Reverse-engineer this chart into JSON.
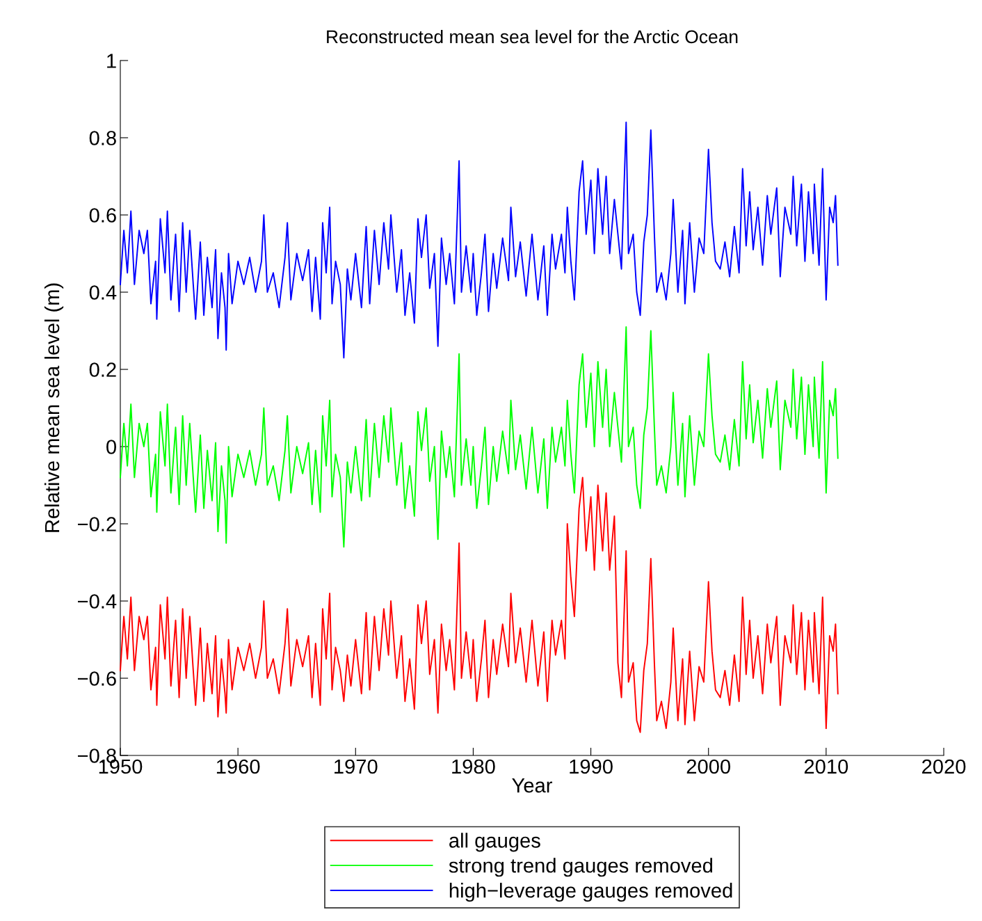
{
  "chart_data": {
    "type": "line",
    "title": "Reconstructed mean sea level for the Arctic Ocean",
    "xlabel": "Year",
    "ylabel": "Relative mean sea level (m)",
    "x": [
      1950.0,
      1950.3,
      1950.6,
      1950.9,
      1951.2,
      1951.6,
      1952.0,
      1952.3,
      1952.6,
      1953.0,
      1953.1,
      1953.4,
      1953.8,
      1954.0,
      1954.3,
      1954.7,
      1955.0,
      1955.3,
      1955.6,
      1955.9,
      1956.2,
      1956.4,
      1956.8,
      1957.1,
      1957.4,
      1957.8,
      1958.1,
      1958.3,
      1958.6,
      1958.9,
      1959.0,
      1959.2,
      1959.5,
      1960.0,
      1960.5,
      1961.0,
      1961.5,
      1962.0,
      1962.2,
      1962.5,
      1963.0,
      1963.5,
      1964.0,
      1964.2,
      1964.5,
      1965.0,
      1965.5,
      1966.0,
      1966.3,
      1966.6,
      1967.0,
      1967.2,
      1967.5,
      1967.8,
      1968.0,
      1968.3,
      1968.7,
      1969.0,
      1969.3,
      1969.6,
      1970.0,
      1970.5,
      1970.9,
      1971.2,
      1971.6,
      1972.0,
      1972.4,
      1972.8,
      1973.0,
      1973.5,
      1973.9,
      1974.2,
      1974.6,
      1975.0,
      1975.3,
      1975.6,
      1976.0,
      1976.3,
      1976.7,
      1977.0,
      1977.3,
      1977.7,
      1978.0,
      1978.4,
      1978.8,
      1979.0,
      1979.4,
      1979.8,
      1980.0,
      1980.3,
      1980.7,
      1981.0,
      1981.3,
      1981.7,
      1982.0,
      1982.5,
      1983.0,
      1983.2,
      1983.6,
      1984.0,
      1984.5,
      1985.0,
      1985.5,
      1986.0,
      1986.3,
      1986.7,
      1987.0,
      1987.5,
      1987.8,
      1988.0,
      1988.3,
      1988.6,
      1989.0,
      1989.3,
      1989.6,
      1990.0,
      1990.3,
      1990.6,
      1991.0,
      1991.3,
      1991.6,
      1992.0,
      1992.3,
      1992.6,
      1993.0,
      1993.2,
      1993.6,
      1993.9,
      1994.2,
      1994.5,
      1994.8,
      1995.1,
      1995.4,
      1995.6,
      1996.0,
      1996.4,
      1996.8,
      1997.0,
      1997.4,
      1997.8,
      1998.0,
      1998.4,
      1998.8,
      1999.2,
      1999.6,
      2000.0,
      2000.3,
      2000.6,
      2001.0,
      2001.4,
      2001.8,
      2002.2,
      2002.6,
      2002.9,
      2003.2,
      2003.5,
      2003.8,
      2004.2,
      2004.6,
      2005.0,
      2005.3,
      2005.8,
      2006.1,
      2006.5,
      2007.0,
      2007.2,
      2007.5,
      2007.9,
      2008.2,
      2008.5,
      2008.9,
      2009.0,
      2009.4,
      2009.7,
      2010.0,
      2010.3,
      2010.6,
      2010.8,
      2011.0
    ],
    "series": [
      {
        "name": "all gauges",
        "color": "#ff0000",
        "values": [
          -0.58,
          -0.44,
          -0.55,
          -0.39,
          -0.58,
          -0.44,
          -0.5,
          -0.44,
          -0.63,
          -0.52,
          -0.67,
          -0.41,
          -0.55,
          -0.39,
          -0.62,
          -0.45,
          -0.65,
          -0.42,
          -0.6,
          -0.44,
          -0.58,
          -0.67,
          -0.47,
          -0.66,
          -0.51,
          -0.64,
          -0.49,
          -0.7,
          -0.55,
          -0.64,
          -0.69,
          -0.5,
          -0.63,
          -0.52,
          -0.58,
          -0.51,
          -0.6,
          -0.52,
          -0.4,
          -0.6,
          -0.55,
          -0.64,
          -0.51,
          -0.42,
          -0.62,
          -0.5,
          -0.57,
          -0.49,
          -0.65,
          -0.51,
          -0.67,
          -0.42,
          -0.55,
          -0.38,
          -0.63,
          -0.52,
          -0.58,
          -0.66,
          -0.54,
          -0.62,
          -0.5,
          -0.64,
          -0.43,
          -0.63,
          -0.44,
          -0.58,
          -0.42,
          -0.54,
          -0.4,
          -0.6,
          -0.49,
          -0.66,
          -0.55,
          -0.68,
          -0.41,
          -0.51,
          -0.4,
          -0.59,
          -0.5,
          -0.69,
          -0.46,
          -0.58,
          -0.5,
          -0.63,
          -0.25,
          -0.6,
          -0.48,
          -0.6,
          -0.5,
          -0.66,
          -0.55,
          -0.45,
          -0.65,
          -0.5,
          -0.59,
          -0.46,
          -0.57,
          -0.38,
          -0.56,
          -0.47,
          -0.61,
          -0.45,
          -0.62,
          -0.48,
          -0.66,
          -0.45,
          -0.54,
          -0.45,
          -0.55,
          -0.2,
          -0.34,
          -0.44,
          -0.16,
          -0.08,
          -0.27,
          -0.13,
          -0.32,
          -0.1,
          -0.27,
          -0.12,
          -0.32,
          -0.18,
          -0.56,
          -0.65,
          -0.27,
          -0.61,
          -0.56,
          -0.71,
          -0.74,
          -0.58,
          -0.51,
          -0.29,
          -0.56,
          -0.71,
          -0.66,
          -0.73,
          -0.61,
          -0.47,
          -0.71,
          -0.55,
          -0.72,
          -0.53,
          -0.71,
          -0.57,
          -0.61,
          -0.35,
          -0.53,
          -0.63,
          -0.65,
          -0.58,
          -0.67,
          -0.54,
          -0.66,
          -0.39,
          -0.59,
          -0.45,
          -0.6,
          -0.49,
          -0.64,
          -0.46,
          -0.56,
          -0.44,
          -0.67,
          -0.49,
          -0.56,
          -0.41,
          -0.59,
          -0.43,
          -0.63,
          -0.45,
          -0.61,
          -0.43,
          -0.64,
          -0.39,
          -0.73,
          -0.49,
          -0.53,
          -0.46,
          -0.64
        ]
      },
      {
        "name": "strong trend gauges removed",
        "color": "#00ff00",
        "values": [
          -0.08,
          0.06,
          -0.05,
          0.11,
          -0.08,
          0.06,
          0.0,
          0.06,
          -0.13,
          -0.02,
          -0.17,
          0.09,
          -0.05,
          0.11,
          -0.12,
          0.05,
          -0.15,
          0.08,
          -0.1,
          0.06,
          -0.08,
          -0.17,
          0.03,
          -0.16,
          -0.01,
          -0.14,
          0.01,
          -0.22,
          -0.05,
          -0.14,
          -0.25,
          0.0,
          -0.13,
          -0.02,
          -0.08,
          -0.01,
          -0.1,
          -0.02,
          0.1,
          -0.1,
          -0.05,
          -0.14,
          -0.01,
          0.08,
          -0.12,
          0.0,
          -0.07,
          0.01,
          -0.15,
          -0.01,
          -0.17,
          0.08,
          -0.05,
          0.12,
          -0.13,
          -0.02,
          -0.08,
          -0.26,
          -0.04,
          -0.12,
          0.0,
          -0.14,
          0.07,
          -0.13,
          0.06,
          -0.08,
          0.08,
          -0.04,
          0.1,
          -0.1,
          0.01,
          -0.16,
          -0.05,
          -0.18,
          0.09,
          -0.01,
          0.1,
          -0.09,
          0.0,
          -0.24,
          0.04,
          -0.08,
          0.0,
          -0.13,
          0.24,
          -0.1,
          0.02,
          -0.1,
          0.0,
          -0.16,
          -0.05,
          0.05,
          -0.15,
          0.0,
          -0.09,
          0.04,
          -0.07,
          0.12,
          -0.06,
          0.03,
          -0.11,
          0.05,
          -0.12,
          0.02,
          -0.16,
          0.05,
          -0.04,
          0.05,
          -0.05,
          0.12,
          -0.02,
          -0.12,
          0.16,
          0.24,
          0.05,
          0.19,
          0.0,
          0.22,
          0.05,
          0.2,
          0.0,
          0.14,
          0.05,
          -0.04,
          0.31,
          0.0,
          0.05,
          -0.1,
          -0.16,
          0.03,
          0.1,
          0.3,
          0.05,
          -0.1,
          -0.05,
          -0.12,
          0.0,
          0.14,
          -0.1,
          0.06,
          -0.13,
          0.08,
          -0.1,
          0.04,
          0.0,
          0.24,
          0.08,
          -0.02,
          -0.04,
          0.03,
          -0.06,
          0.07,
          -0.05,
          0.22,
          0.02,
          0.16,
          0.01,
          0.12,
          -0.03,
          0.15,
          0.05,
          0.17,
          -0.06,
          0.12,
          0.05,
          0.2,
          0.02,
          0.18,
          -0.02,
          0.16,
          0.0,
          0.18,
          -0.03,
          0.22,
          -0.12,
          0.12,
          0.08,
          0.15,
          -0.03
        ]
      },
      {
        "name": "high−leverage gauges removed",
        "color": "#0000ff",
        "values": [
          0.42,
          0.56,
          0.45,
          0.61,
          0.42,
          0.56,
          0.5,
          0.56,
          0.37,
          0.48,
          0.33,
          0.59,
          0.45,
          0.61,
          0.38,
          0.55,
          0.35,
          0.58,
          0.4,
          0.56,
          0.42,
          0.33,
          0.53,
          0.34,
          0.49,
          0.36,
          0.51,
          0.28,
          0.45,
          0.36,
          0.25,
          0.5,
          0.37,
          0.48,
          0.42,
          0.49,
          0.4,
          0.48,
          0.6,
          0.4,
          0.45,
          0.36,
          0.49,
          0.58,
          0.38,
          0.5,
          0.43,
          0.51,
          0.35,
          0.49,
          0.33,
          0.58,
          0.45,
          0.62,
          0.37,
          0.48,
          0.42,
          0.23,
          0.46,
          0.38,
          0.5,
          0.36,
          0.57,
          0.37,
          0.56,
          0.42,
          0.58,
          0.46,
          0.6,
          0.4,
          0.51,
          0.34,
          0.45,
          0.32,
          0.59,
          0.49,
          0.6,
          0.41,
          0.5,
          0.26,
          0.54,
          0.42,
          0.5,
          0.37,
          0.74,
          0.4,
          0.52,
          0.4,
          0.5,
          0.34,
          0.45,
          0.55,
          0.35,
          0.5,
          0.41,
          0.54,
          0.43,
          0.62,
          0.44,
          0.53,
          0.39,
          0.55,
          0.38,
          0.52,
          0.34,
          0.55,
          0.46,
          0.55,
          0.45,
          0.62,
          0.48,
          0.38,
          0.66,
          0.74,
          0.55,
          0.69,
          0.5,
          0.72,
          0.55,
          0.7,
          0.5,
          0.64,
          0.55,
          0.46,
          0.84,
          0.5,
          0.55,
          0.4,
          0.34,
          0.53,
          0.6,
          0.82,
          0.55,
          0.4,
          0.45,
          0.38,
          0.5,
          0.64,
          0.4,
          0.56,
          0.37,
          0.58,
          0.4,
          0.54,
          0.5,
          0.77,
          0.58,
          0.48,
          0.46,
          0.53,
          0.44,
          0.57,
          0.45,
          0.72,
          0.52,
          0.66,
          0.51,
          0.62,
          0.47,
          0.65,
          0.55,
          0.67,
          0.44,
          0.62,
          0.55,
          0.7,
          0.52,
          0.68,
          0.48,
          0.66,
          0.5,
          0.68,
          0.47,
          0.72,
          0.38,
          0.62,
          0.58,
          0.65,
          0.47
        ]
      }
    ],
    "xlim": [
      1950,
      2020
    ],
    "xticks": [
      1950,
      1960,
      1970,
      1980,
      1990,
      2000,
      2010,
      2020
    ],
    "ylim": [
      -0.8,
      1
    ],
    "yticks": [
      {
        "value": -0.8,
        "label": "−0.8"
      },
      {
        "value": -0.6,
        "label": "−0.6"
      },
      {
        "value": -0.4,
        "label": "−0.4"
      },
      {
        "value": -0.2,
        "label": "−0.2"
      },
      0,
      0.2,
      0.4,
      0.6,
      0.8,
      1
    ],
    "grid": false,
    "legend": "bottom",
    "marker": "none",
    "line_style": "solid"
  }
}
